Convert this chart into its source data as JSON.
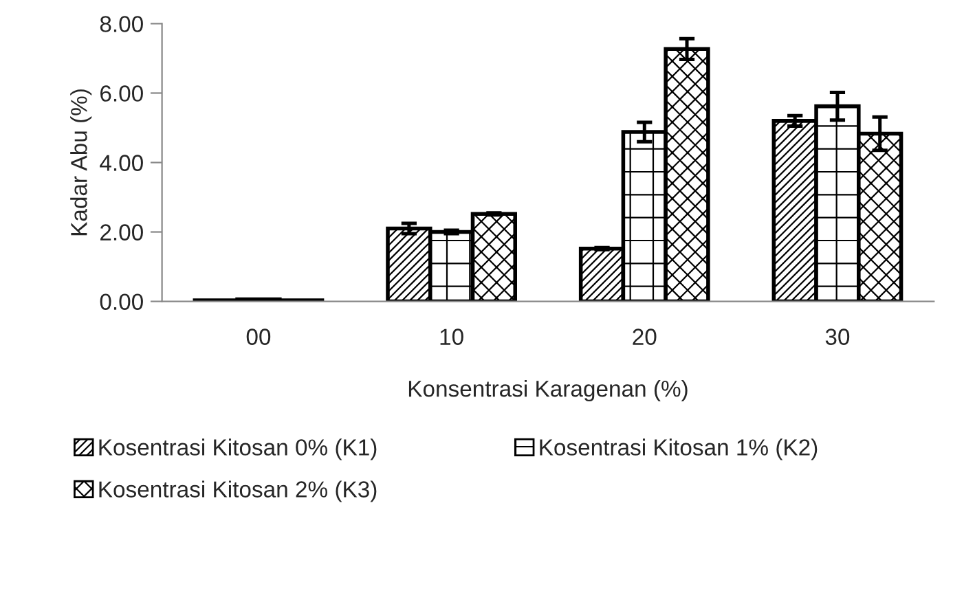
{
  "chart_data": {
    "type": "bar",
    "xlabel": "Konsentrasi Karagenan (%)",
    "ylabel": "Kadar Abu (%)",
    "categories": [
      "00",
      "10",
      "20",
      "30"
    ],
    "series": [
      {
        "name": "Kosentrasi Kitosan 0% (K1)",
        "color": "#000000",
        "values": [
          0.03,
          2.1,
          1.52,
          5.2
        ],
        "errors": [
          null,
          0.15,
          0.03,
          0.15
        ]
      },
      {
        "name": "Kosentrasi Kitosan 1% (K2)",
        "color": "#000000",
        "values": [
          0.06,
          2.0,
          4.88,
          5.62
        ],
        "errors": [
          null,
          0.05,
          0.28,
          0.4
        ]
      },
      {
        "name": "Kosentrasi Kitosan 2% (K3)",
        "color": "#000000",
        "values": [
          0.03,
          2.52,
          7.27,
          4.83
        ],
        "errors": [
          null,
          0.03,
          0.3,
          0.48
        ]
      }
    ],
    "ylim": [
      0,
      8
    ],
    "yticks": [
      {
        "value": 0,
        "label": "0.00"
      },
      {
        "value": 2,
        "label": "2.00"
      },
      {
        "value": 4,
        "label": "4.00"
      },
      {
        "value": 6,
        "label": "6.00"
      },
      {
        "value": 8,
        "label": "8.00"
      }
    ],
    "grid": false,
    "legend": "bottom"
  }
}
